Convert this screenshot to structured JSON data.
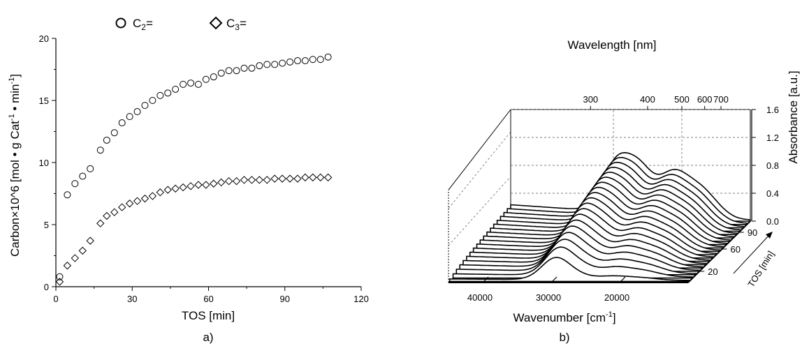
{
  "chart_data": [
    {
      "type": "scatter",
      "panel_label": "a)",
      "xlabel": "TOS [min]",
      "ylabel": "Carbon×10^6 [mol • g Cat",
      "ylabel_sup1": "-1",
      "ylabel_mid": " • min",
      "ylabel_sup2": "-1",
      "ylabel_end": "]",
      "xlim": [
        0,
        120
      ],
      "ylim": [
        0,
        20
      ],
      "xticks": [
        "0",
        "30",
        "60",
        "90",
        "120"
      ],
      "yticks": [
        "0",
        "5",
        "10",
        "15",
        "20"
      ],
      "legend_placement": "top",
      "series": [
        {
          "name_base": "C",
          "name_sub": "2",
          "name_suffix": "=",
          "marker": "circle",
          "x": [
            1.5,
            4.5,
            7.5,
            10.5,
            13.5,
            17.5,
            20,
            23,
            26,
            29,
            32,
            35,
            38,
            41,
            44,
            47,
            50,
            53,
            56,
            59,
            62,
            65,
            68,
            71,
            74,
            77,
            80,
            83,
            86,
            89,
            92,
            95,
            98,
            101,
            104,
            107
          ],
          "y": [
            0.8,
            7.4,
            8.3,
            8.9,
            9.5,
            11.0,
            11.8,
            12.4,
            13.2,
            13.7,
            14.1,
            14.6,
            15.0,
            15.4,
            15.6,
            15.9,
            16.3,
            16.4,
            16.3,
            16.7,
            16.9,
            17.2,
            17.4,
            17.4,
            17.6,
            17.6,
            17.8,
            17.9,
            17.9,
            18.0,
            18.1,
            18.2,
            18.2,
            18.3,
            18.3,
            18.5
          ]
        },
        {
          "name_base": "C",
          "name_sub": "3",
          "name_suffix": "=",
          "marker": "diamond",
          "x": [
            1.5,
            4.5,
            7.5,
            10.5,
            13.5,
            17.5,
            20,
            23,
            26,
            29,
            32,
            35,
            38,
            41,
            44,
            47,
            50,
            53,
            56,
            59,
            62,
            65,
            68,
            71,
            74,
            77,
            80,
            83,
            86,
            89,
            92,
            95,
            98,
            101,
            104,
            107
          ],
          "y": [
            0.4,
            1.7,
            2.3,
            2.9,
            3.7,
            5.1,
            5.7,
            6.0,
            6.4,
            6.7,
            6.9,
            7.1,
            7.3,
            7.6,
            7.8,
            7.9,
            8.0,
            8.1,
            8.2,
            8.2,
            8.3,
            8.4,
            8.5,
            8.5,
            8.6,
            8.6,
            8.6,
            8.6,
            8.7,
            8.7,
            8.7,
            8.7,
            8.8,
            8.8,
            8.8,
            8.8
          ]
        }
      ]
    },
    {
      "type": "line",
      "style": "3d-waterfall",
      "panel_label": "b)",
      "xlabel": "Wavenumber [cm",
      "xlabel_sup": "-1",
      "xlabel_end": "]",
      "top_axis_label": "Wavelength [nm]",
      "zlabel": "Absorbance [a.u.]",
      "depth_label": "TOS [min]",
      "x_range": [
        45000,
        10000
      ],
      "xticks": [
        "40000",
        "30000",
        "20000"
      ],
      "top_ticks": [
        "300",
        "400",
        "500",
        "600",
        "700"
      ],
      "zticks": [
        "0.0",
        "0.4",
        "0.8",
        "1.2",
        "1.6"
      ],
      "zlim": [
        0,
        1.6
      ],
      "depth_ticks": [
        "20",
        "60",
        "90"
      ],
      "depth_range": [
        0,
        110
      ],
      "tos_values": [
        2,
        8,
        14,
        20,
        26,
        32,
        38,
        44,
        50,
        56,
        62,
        68,
        74,
        80,
        86,
        92,
        98,
        104,
        110
      ],
      "band_model": {
        "wavenumbers_cm-1": [
          29500,
          26000,
          21500,
          17500
        ],
        "widths_cm-1": [
          2900,
          2700,
          2900,
          3600
        ],
        "band1_amp_max": 0.7,
        "band_amp_max": [
          0.55,
          0.5,
          0.42
        ],
        "baseline_max": 0.22
      }
    }
  ]
}
